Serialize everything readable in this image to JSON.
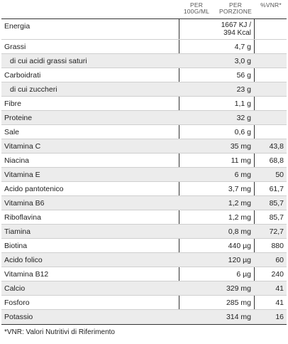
{
  "header": {
    "col_per_100": "PER\n100G/ML",
    "col_per_portion": "PER\nPORZIONE",
    "col_vnr": "%VNR*"
  },
  "rows": [
    {
      "name": "Energia",
      "portion": "1667 KJ /\n394 Kcal",
      "vnr": "",
      "sub": false,
      "shade": false,
      "energy": true
    },
    {
      "name": "Grassi",
      "portion": "4,7 g",
      "vnr": "",
      "sub": false,
      "shade": false
    },
    {
      "name": "di cui acidi grassi saturi",
      "portion": "3,0 g",
      "vnr": "",
      "sub": true,
      "shade": true
    },
    {
      "name": "Carboidrati",
      "portion": "56 g",
      "vnr": "",
      "sub": false,
      "shade": false
    },
    {
      "name": "di cui zuccheri",
      "portion": "23 g",
      "vnr": "",
      "sub": true,
      "shade": true
    },
    {
      "name": "Fibre",
      "portion": "1,1 g",
      "vnr": "",
      "sub": false,
      "shade": false
    },
    {
      "name": "Proteine",
      "portion": "32 g",
      "vnr": "",
      "sub": false,
      "shade": true
    },
    {
      "name": "Sale",
      "portion": "0,6 g",
      "vnr": "",
      "sub": false,
      "shade": false
    },
    {
      "name": "Vitamina C",
      "portion": "35 mg",
      "vnr": "43,8",
      "sub": false,
      "shade": true
    },
    {
      "name": "Niacina",
      "portion": "11 mg",
      "vnr": "68,8",
      "sub": false,
      "shade": false
    },
    {
      "name": "Vitamina E",
      "portion": "6 mg",
      "vnr": "50",
      "sub": false,
      "shade": true
    },
    {
      "name": "Acido pantotenico",
      "portion": "3,7 mg",
      "vnr": "61,7",
      "sub": false,
      "shade": false
    },
    {
      "name": "Vitamina B6",
      "portion": "1,2 mg",
      "vnr": "85,7",
      "sub": false,
      "shade": true
    },
    {
      "name": "Riboflavina",
      "portion": "1,2 mg",
      "vnr": "85,7",
      "sub": false,
      "shade": false
    },
    {
      "name": "Tiamina",
      "portion": "0,8 mg",
      "vnr": "72,7",
      "sub": false,
      "shade": true
    },
    {
      "name": "Biotina",
      "portion": "440 µg",
      "vnr": "880",
      "sub": false,
      "shade": false
    },
    {
      "name": "Acido folico",
      "portion": "120 µg",
      "vnr": "60",
      "sub": false,
      "shade": true
    },
    {
      "name": "Vitamina B12",
      "portion": "6 µg",
      "vnr": "240",
      "sub": false,
      "shade": false
    },
    {
      "name": "Calcio",
      "portion": "329 mg",
      "vnr": "41",
      "sub": false,
      "shade": true
    },
    {
      "name": "Fosforo",
      "portion": "285 mg",
      "vnr": "41",
      "sub": false,
      "shade": false
    },
    {
      "name": "Potassio",
      "portion": "314 mg",
      "vnr": "16",
      "sub": false,
      "shade": true
    }
  ],
  "footnote": "*VNR: Valori Nutritivi di Riferimento"
}
